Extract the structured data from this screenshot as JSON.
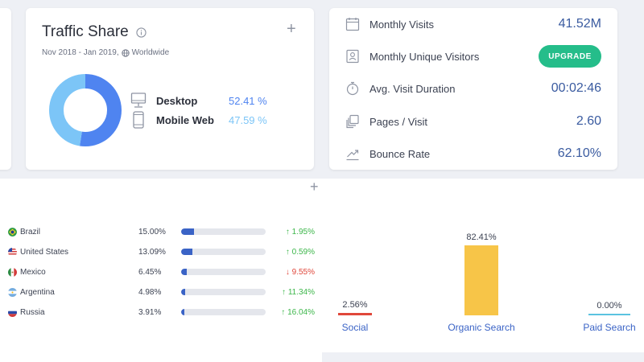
{
  "traffic_share": {
    "title": "Traffic Share",
    "date_range": "Nov 2018 - Jan 2019,",
    "region": "Worldwide",
    "plus": "+",
    "devices": [
      {
        "name": "Desktop",
        "pct_label": "52.41 %",
        "share": 52.41,
        "color": "#4f84f0",
        "icon": "desktop-icon"
      },
      {
        "name": "Mobile Web",
        "pct_label": "47.59 %",
        "share": 47.59,
        "color": "#7cc5f7",
        "icon": "mobile-icon"
      }
    ]
  },
  "metrics": {
    "rows": [
      {
        "label": "Monthly Visits",
        "value": "41.52M",
        "icon": "calendar-icon"
      },
      {
        "label": "Monthly Unique Visitors",
        "value": "",
        "button": "UPGRADE",
        "icon": "id-card-icon"
      },
      {
        "label": "Avg. Visit Duration",
        "value": "00:02:46",
        "icon": "stopwatch-icon"
      },
      {
        "label": "Pages / Visit",
        "value": "2.60",
        "icon": "pages-icon"
      },
      {
        "label": "Bounce Rate",
        "value": "62.10%",
        "icon": "bounce-icon"
      }
    ]
  },
  "countries": {
    "plus": "+",
    "rows": [
      {
        "name": "Brazil",
        "share": "15.00%",
        "share_num": 15.0,
        "change": "↑ 1.95%",
        "dir": "up"
      },
      {
        "name": "United States",
        "share": "13.09%",
        "share_num": 13.09,
        "change": "↑ 0.59%",
        "dir": "up"
      },
      {
        "name": "Mexico",
        "share": "6.45%",
        "share_num": 6.45,
        "change": "↓ 9.55%",
        "dir": "down"
      },
      {
        "name": "Argentina",
        "share": "4.98%",
        "share_num": 4.98,
        "change": "↑ 11.34%",
        "dir": "up"
      },
      {
        "name": "Russia",
        "share": "3.91%",
        "share_num": 3.91,
        "change": "↑ 16.04%",
        "dir": "up"
      }
    ],
    "colors": {
      "up": "#3cb64a",
      "down": "#e0473b"
    }
  },
  "chart_data": {
    "type": "bar",
    "categories": [
      "Social",
      "Organic Search",
      "Paid Search"
    ],
    "values": [
      2.56,
      82.41,
      0.0
    ],
    "value_labels": [
      "2.56%",
      "82.41%",
      "0.00%"
    ],
    "colors": [
      "#e0473b",
      "#f7c548",
      "#5bc3e0"
    ],
    "ylim": [
      0,
      100
    ]
  }
}
